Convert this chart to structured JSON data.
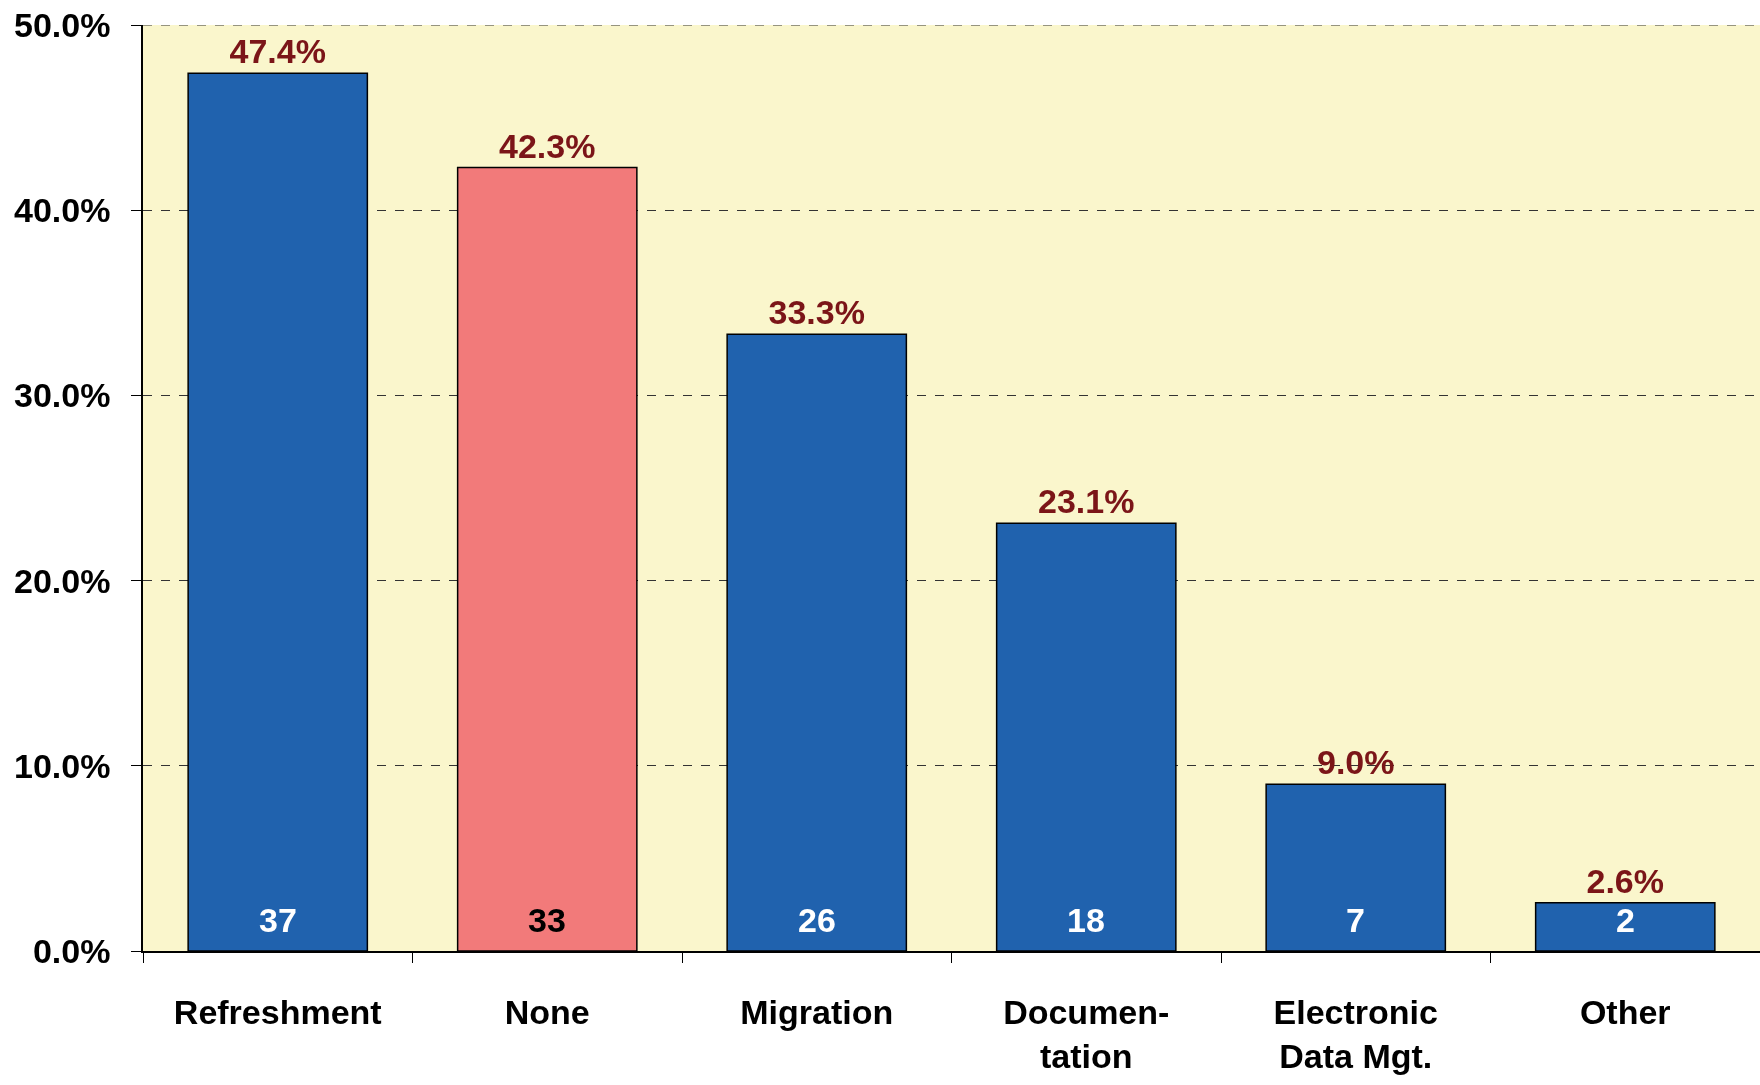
{
  "chart_data": {
    "type": "bar",
    "categories": [
      "Refreshment",
      "None",
      "Migration",
      "Documen-\ntation",
      "Electronic\nData Mgt.",
      "Other"
    ],
    "values": [
      47.4,
      42.3,
      33.3,
      23.1,
      9.0,
      2.6
    ],
    "colors": [
      "#2062ae",
      "#f27a7a",
      "#2062ae",
      "#2062ae",
      "#2062ae",
      "#2062ae"
    ],
    "value_labels": [
      "47.4%",
      "42.3%",
      "33.3%",
      "23.1%",
      "9.0%",
      "2.6%"
    ],
    "ylim": [
      0,
      50
    ],
    "yticks": [
      {
        "value": 0,
        "label": "0.0%"
      },
      {
        "value": 10,
        "label": "10.0%"
      },
      {
        "value": 20,
        "label": "20.0%"
      },
      {
        "value": 30,
        "label": "30.0%"
      },
      {
        "value": 40,
        "label": "40.0%"
      },
      {
        "value": 50,
        "label": "50.0%"
      }
    ],
    "grid": "y",
    "annotations": [
      {
        "text": "37",
        "x": "Refreshment",
        "y": 0
      },
      {
        "text": "33",
        "x": "None",
        "y": 0
      },
      {
        "text": "26",
        "x": "Migration",
        "y": 0
      },
      {
        "text": "18",
        "x": "Documen-\ntation",
        "y": 0
      },
      {
        "text": "7",
        "x": "Electronic\nData Mgt.",
        "y": 0
      },
      {
        "text": "2",
        "x": "Other",
        "y": 0
      }
    ]
  }
}
